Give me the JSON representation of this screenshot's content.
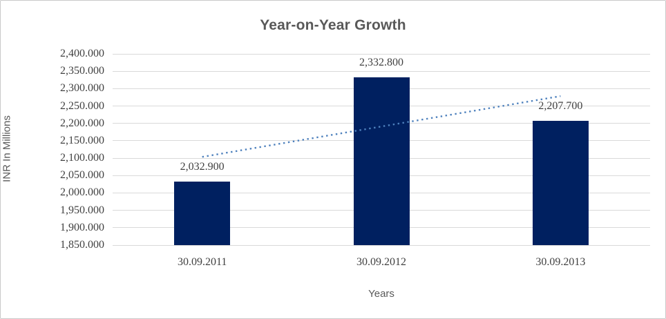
{
  "chart_data": {
    "type": "bar",
    "title": "Year-on-Year Growth",
    "xlabel": "Years",
    "ylabel": "INR In Millions",
    "categories": [
      "30.09.2011",
      "30.09.2012",
      "30.09.2013"
    ],
    "values": [
      2032.9,
      2332.8,
      2207.7
    ],
    "data_labels": [
      "2,032.900",
      "2,332.800",
      "2,207.700"
    ],
    "ylim": [
      1850,
      2400
    ],
    "ytick_step": 50,
    "ytick_labels": [
      "2,400.000",
      "2,350.000",
      "2,300.000",
      "2,250.000",
      "2,200.000",
      "2,150.000",
      "2,100.000",
      "2,050.000",
      "2,000.000",
      "1,950.000",
      "1,900.000",
      "1,850.000"
    ],
    "grid": true,
    "legend": "none",
    "trendline": {
      "type": "linear",
      "style": "dotted",
      "start_value": 2103.7,
      "end_value": 2278.5
    },
    "colors": {
      "bar": "#002060",
      "trendline": "#4e81bd",
      "gridline": "#d9d9d9",
      "title_text": "#595959",
      "tick_text": "#404040",
      "axis_title_text": "#595959",
      "frame_border": "#c9c9c9"
    }
  }
}
